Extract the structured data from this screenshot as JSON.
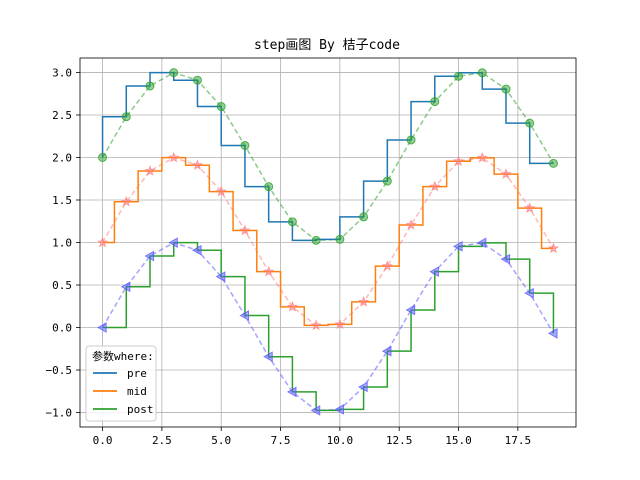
{
  "chart_data": {
    "type": "line",
    "title": "step画图 By 桔子code",
    "xlabel": "",
    "ylabel": "",
    "xlim": [
      -0.95,
      19.95
    ],
    "ylim": [
      -1.17,
      3.17
    ],
    "x_ticks": [
      0.0,
      2.5,
      5.0,
      7.5,
      10.0,
      12.5,
      15.0,
      17.5
    ],
    "x_tick_labels": [
      "0.0",
      "2.5",
      "5.0",
      "7.5",
      "10.0",
      "12.5",
      "15.0",
      "17.5"
    ],
    "y_ticks": [
      -1.0,
      -0.5,
      0.0,
      0.5,
      1.0,
      1.5,
      2.0,
      2.5,
      3.0
    ],
    "y_tick_labels": [
      "−1.0",
      "−0.5",
      "0.0",
      "0.5",
      "1.0",
      "1.5",
      "2.0",
      "2.5",
      "3.0"
    ],
    "grid": true,
    "legend": {
      "title": "参数where:",
      "placement": "lower-left",
      "entries": [
        "pre",
        "mid",
        "post"
      ]
    },
    "x": [
      0,
      1,
      2,
      3,
      4,
      5,
      6,
      7,
      8,
      9,
      10,
      11,
      12,
      13,
      14,
      15,
      16,
      17,
      18,
      19
    ],
    "series": [
      {
        "name": "pre",
        "step_where": "pre",
        "color": "#1f77b4",
        "marker": "circle",
        "marker_line_color": "#2ca02c",
        "values": [
          2.0,
          2.479,
          2.841,
          2.998,
          2.909,
          2.599,
          2.141,
          1.657,
          1.243,
          1.025,
          1.037,
          1.301,
          1.722,
          2.206,
          2.657,
          2.955,
          2.996,
          2.804,
          2.404,
          1.931
        ]
      },
      {
        "name": "mid",
        "step_where": "mid",
        "color": "#ff7f0e",
        "marker": "star",
        "marker_line_color": "#ff7f7f",
        "values": [
          1.0,
          1.479,
          1.841,
          1.998,
          1.909,
          1.599,
          1.141,
          0.657,
          0.243,
          0.025,
          0.037,
          0.301,
          0.722,
          1.206,
          1.657,
          1.955,
          1.996,
          1.804,
          1.404,
          0.931
        ]
      },
      {
        "name": "post",
        "step_where": "post",
        "color": "#2ca02c",
        "marker": "triangle-left",
        "marker_line_color": "#5a5aff",
        "values": [
          0.0,
          0.479,
          0.841,
          0.998,
          0.909,
          0.599,
          0.141,
          -0.343,
          -0.757,
          -0.975,
          -0.963,
          -0.699,
          -0.278,
          0.206,
          0.657,
          0.955,
          0.996,
          0.804,
          0.404,
          -0.069
        ]
      }
    ]
  }
}
